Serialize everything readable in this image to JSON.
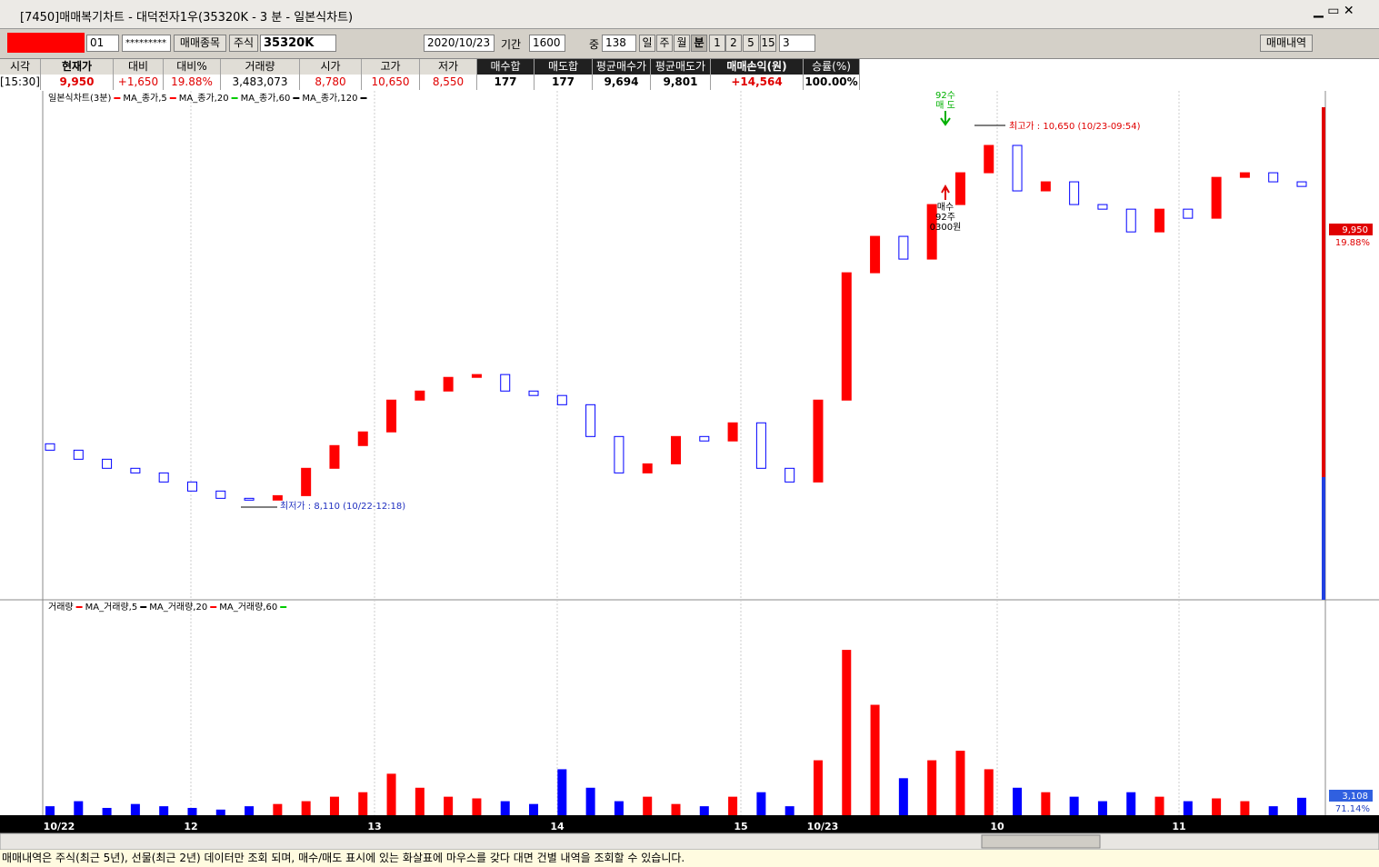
{
  "window": {
    "title": "[7450]매매복기차트 - 대덕전자1우(35320K - 3 분 - 일본식차트)"
  },
  "toolbar": {
    "account": "01",
    "password": "*********",
    "trade_items": "매매종목",
    "market": "주식",
    "code": "35320K",
    "date": "2020/10/23",
    "period_label": "기간",
    "period": "1600",
    "mid_label": "중",
    "mid": "138",
    "intervals": [
      "일",
      "주",
      "월",
      "분",
      "1",
      "2",
      "5",
      "15"
    ],
    "interval_value": "3",
    "history_button": "매매내역"
  },
  "info_table": {
    "headers": [
      "시각",
      "현재가",
      "대비",
      "대비%",
      "거래량",
      "시가",
      "고가",
      "저가",
      "매수합",
      "매도합",
      "평균매수가",
      "평균매도가",
      "매매손익(원)",
      "승률(%)"
    ],
    "values": [
      "[15:30]",
      "9,950",
      "+1,650",
      "19.88%",
      "3,483,073",
      "8,780",
      "10,650",
      "8,550",
      "177",
      "177",
      "9,694",
      "9,801",
      "+14,564",
      "100.00%"
    ]
  },
  "chart_data": [
    {
      "type": "candlestick",
      "title": "일본식차트(3분)",
      "legend": [
        {
          "name": "MA_종가,5",
          "color": "#000000"
        },
        {
          "name": "MA_종가,20",
          "color": "#ff0000"
        },
        {
          "name": "MA_종가,60",
          "color": "#00cc00"
        },
        {
          "name": "MA_종가,120",
          "color": "#000000"
        }
      ],
      "title_color": "#ff0000",
      "open": 8520,
      "closes": [
        8477,
        8416,
        8355,
        8324,
        8263,
        8202,
        8153,
        8141,
        8171,
        8355,
        8508,
        8600,
        8814,
        8875,
        8967,
        8986,
        8875,
        8845,
        8783,
        8569,
        8324,
        8385,
        8569,
        8539,
        8661,
        8355,
        8263,
        8814,
        9671,
        9916,
        9763,
        10130,
        10344,
        10528,
        10222,
        10283,
        10130,
        10099,
        9946,
        10099,
        10038,
        10313,
        10344,
        10283,
        10252
      ],
      "ylim": [
        7470,
        10895
      ],
      "up_color": "#ff0000",
      "down_color": "#0000ff",
      "annotations": {
        "high": "최고가 : 10,650 (10/23-09:54)",
        "low": "최저가 : 8,110 (10/22-12:18)",
        "sell_qty": "92수",
        "sell": "매 도",
        "buy": "매수",
        "buy_qty": "92주",
        "buy_price": "0300원"
      },
      "price_label": "9,950",
      "change_label": "19.88%"
    },
    {
      "type": "bar",
      "title": "거래량",
      "legend": [
        {
          "name": "MA_거래량,5",
          "color": "#ff0000"
        },
        {
          "name": "MA_거래량,20",
          "color": "#000000"
        },
        {
          "name": "MA_거래량,60",
          "color": "#ff0000"
        }
      ],
      "end_color": "#00cc00",
      "values": [
        1600,
        2500,
        1300,
        2000,
        1600,
        1300,
        1000,
        1600,
        2000,
        2500,
        3300,
        4100,
        7400,
        4900,
        3300,
        3000,
        2500,
        2000,
        8200,
        4900,
        2500,
        3300,
        2000,
        1600,
        3300,
        4100,
        1600,
        9800,
        29500,
        19700,
        6600,
        9800,
        11500,
        8200,
        4900,
        4100,
        3300,
        2500,
        4100,
        3300,
        2500,
        3000,
        2500,
        1600,
        3108
      ],
      "ylim": [
        0,
        36000
      ],
      "last_label": "3,108",
      "ratio_label": "71.14%"
    }
  ],
  "time_axis": {
    "labels": [
      "10/22",
      "12",
      "13",
      "14",
      "15",
      "10/23",
      "10",
      "11"
    ]
  },
  "status": "매매내역은 주식(최근 5년), 선물(최근 2년) 데이터만 조회 되며, 매수/매도 표시에 있는 화살표에 마우스를 갖다 대면 건별 내역을 조회할 수 있습니다."
}
